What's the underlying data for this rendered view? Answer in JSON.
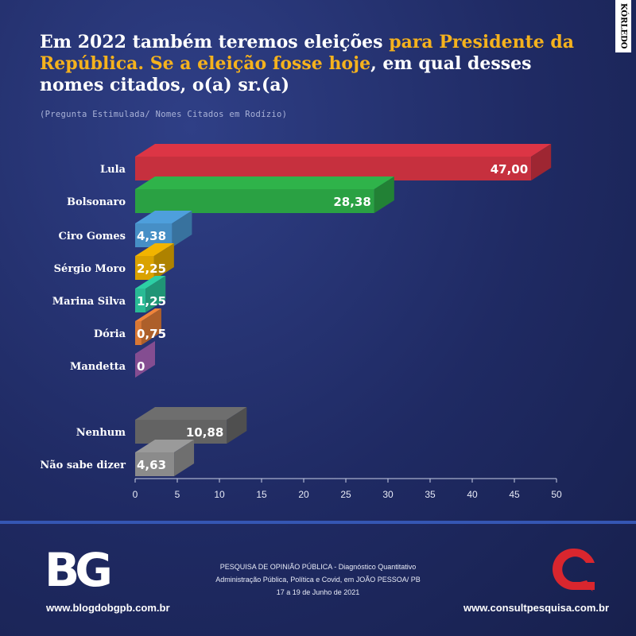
{
  "title": {
    "part1": "Em 2022 também teremos eleições ",
    "highlight1": "para Presidente da República. Se a eleição fosse hoje",
    "part2": ", em qual desses nomes citados, o(a) sr.(a)"
  },
  "subtitle": "(Pregunta Estimulada/ Nomes Citados em Rodízio)",
  "brand_tag": "KÓRLEDO",
  "chart_data": {
    "type": "bar",
    "orientation": "horizontal",
    "categories": [
      "Lula",
      "Bolsonaro",
      "Ciro Gomes",
      "Sérgio Moro",
      "Marina Silva",
      "Dória",
      "Mandetta",
      "Nenhum",
      "Não sabe dizer"
    ],
    "values": [
      47.0,
      28.38,
      4.38,
      2.25,
      1.25,
      0.75,
      0,
      10.88,
      4.63
    ],
    "labels": [
      "47,00",
      "28,38",
      "4,38",
      "2,25",
      "1,25",
      "0,75",
      "0",
      "10,88",
      "4,63"
    ],
    "colors": [
      "#dc3545",
      "#2fb34a",
      "#4e9fdc",
      "#f2b400",
      "#2dcfa4",
      "#f0843a",
      "#b86bc9",
      "#6e6e6e",
      "#9a9a9a"
    ],
    "xlim": [
      0,
      50
    ],
    "xticks": [
      "0",
      "5",
      "10",
      "15",
      "20",
      "25",
      "30",
      "35",
      "40",
      "45",
      "50"
    ],
    "xlabel": "",
    "ylabel": "",
    "grid": false,
    "legend": "none"
  },
  "footer": {
    "left_logo": "BG",
    "left_url": "www.blogdobgpb.com.br",
    "center_line1": "PESQUISA DE OPINIÃO PÚBLICA - Diagnóstico Quantitativo",
    "center_line2": "Administração Pública, Política e Covid, em JOÃO PESSOA/ PB",
    "center_line3": "17 a 19 de Junho de 2021",
    "right_url": "www.consultpesquisa.com.br",
    "colors": {
      "accent": "#f5b21d",
      "divider": "#3556b3",
      "logo_red": "#d9262e"
    }
  }
}
